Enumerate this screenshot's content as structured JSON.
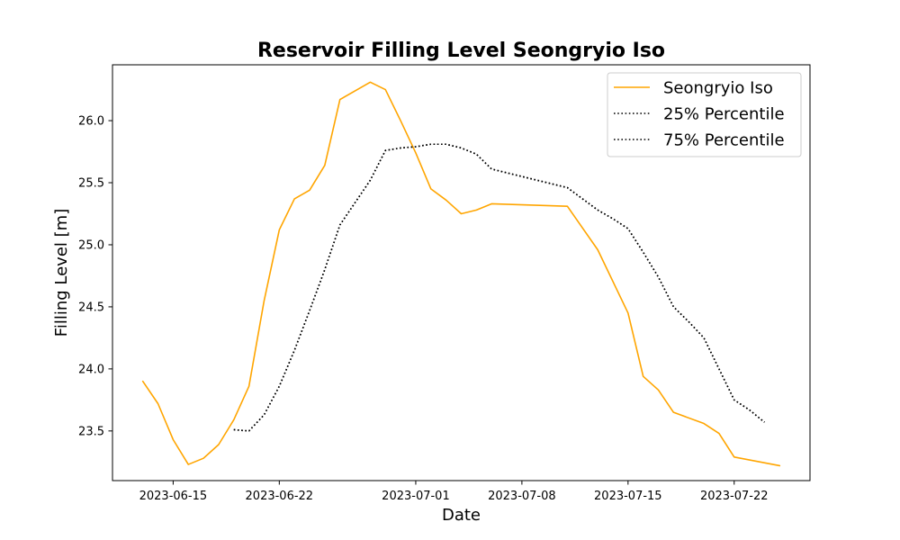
{
  "chart_data": {
    "type": "line",
    "title": "Reservoir Filling Level Seongryio Iso",
    "xlabel": "Date",
    "ylabel": "Filling Level [m]",
    "xlim": [
      "2023-06-11",
      "2023-07-27"
    ],
    "ylim": [
      23.1,
      26.45
    ],
    "x_ticks": [
      "2023-06-15",
      "2023-06-22",
      "2023-07-01",
      "2023-07-08",
      "2023-07-15",
      "2023-07-22"
    ],
    "y_ticks": [
      23.5,
      24.0,
      24.5,
      25.0,
      25.5,
      26.0
    ],
    "y_tick_labels": [
      "23.5",
      "24.0",
      "24.5",
      "25.0",
      "25.5",
      "26.0"
    ],
    "grid": false,
    "legend_position": "top-right",
    "series": [
      {
        "name": "Seongryio Iso",
        "color": "#FFA500",
        "style": "solid",
        "points": [
          [
            "2023-06-13",
            23.9
          ],
          [
            "2023-06-14",
            23.72
          ],
          [
            "2023-06-15",
            23.43
          ],
          [
            "2023-06-16",
            23.23
          ],
          [
            "2023-06-17",
            23.28
          ],
          [
            "2023-06-18",
            23.39
          ],
          [
            "2023-06-19",
            23.59
          ],
          [
            "2023-06-20",
            23.86
          ],
          [
            "2023-06-21",
            24.55
          ],
          [
            "2023-06-22",
            25.12
          ],
          [
            "2023-06-23",
            25.37
          ],
          [
            "2023-06-24",
            25.44
          ],
          [
            "2023-06-25",
            25.64
          ],
          [
            "2023-06-26",
            26.17
          ],
          [
            "2023-06-27",
            26.24
          ],
          [
            "2023-06-28",
            26.31
          ],
          [
            "2023-06-29",
            26.25
          ],
          [
            "2023-06-30",
            26.0
          ],
          [
            "2023-07-01",
            25.74
          ],
          [
            "2023-07-02",
            25.45
          ],
          [
            "2023-07-03",
            25.36
          ],
          [
            "2023-07-04",
            25.25
          ],
          [
            "2023-07-05",
            25.28
          ],
          [
            "2023-07-06",
            25.33
          ],
          [
            "2023-07-11",
            25.31
          ],
          [
            "2023-07-13",
            24.96
          ],
          [
            "2023-07-15",
            24.45
          ],
          [
            "2023-07-16",
            23.94
          ],
          [
            "2023-07-17",
            23.83
          ],
          [
            "2023-07-18",
            23.65
          ],
          [
            "2023-07-20",
            23.56
          ],
          [
            "2023-07-21",
            23.48
          ],
          [
            "2023-07-22",
            23.29
          ],
          [
            "2023-07-25",
            23.22
          ]
        ]
      },
      {
        "name": "25% Percentile",
        "color": "#000000",
        "style": "dotted",
        "points": [
          [
            "2023-06-19",
            23.51
          ],
          [
            "2023-06-20",
            23.5
          ],
          [
            "2023-06-21",
            23.63
          ],
          [
            "2023-06-22",
            23.86
          ],
          [
            "2023-06-23",
            24.15
          ],
          [
            "2023-06-24",
            24.47
          ],
          [
            "2023-06-25",
            24.8
          ],
          [
            "2023-06-26",
            25.16
          ],
          [
            "2023-06-27",
            25.34
          ],
          [
            "2023-06-28",
            25.52
          ],
          [
            "2023-06-29",
            25.76
          ],
          [
            "2023-06-30",
            25.78
          ],
          [
            "2023-07-01",
            25.79
          ],
          [
            "2023-07-02",
            25.81
          ],
          [
            "2023-07-03",
            25.81
          ],
          [
            "2023-07-04",
            25.78
          ],
          [
            "2023-07-05",
            25.73
          ],
          [
            "2023-07-06",
            25.61
          ],
          [
            "2023-07-07",
            25.58
          ],
          [
            "2023-07-08",
            25.55
          ],
          [
            "2023-07-09",
            25.52
          ],
          [
            "2023-07-10",
            25.49
          ],
          [
            "2023-07-11",
            25.46
          ],
          [
            "2023-07-12",
            25.37
          ],
          [
            "2023-07-13",
            25.28
          ],
          [
            "2023-07-14",
            25.21
          ],
          [
            "2023-07-15",
            25.13
          ],
          [
            "2023-07-16",
            24.94
          ],
          [
            "2023-07-17",
            24.74
          ],
          [
            "2023-07-18",
            24.5
          ],
          [
            "2023-07-19",
            24.38
          ],
          [
            "2023-07-20",
            24.25
          ],
          [
            "2023-07-21",
            24.0
          ],
          [
            "2023-07-22",
            23.75
          ],
          [
            "2023-07-23",
            23.67
          ],
          [
            "2023-07-24",
            23.57
          ]
        ]
      },
      {
        "name": "75% Percentile",
        "color": "#000000",
        "style": "dotted",
        "points": [
          [
            "2023-06-19",
            23.51
          ],
          [
            "2023-06-20",
            23.5
          ],
          [
            "2023-06-21",
            23.63
          ],
          [
            "2023-06-22",
            23.86
          ],
          [
            "2023-06-23",
            24.15
          ],
          [
            "2023-06-24",
            24.47
          ],
          [
            "2023-06-25",
            24.8
          ],
          [
            "2023-06-26",
            25.16
          ],
          [
            "2023-06-27",
            25.34
          ],
          [
            "2023-06-28",
            25.52
          ],
          [
            "2023-06-29",
            25.76
          ],
          [
            "2023-06-30",
            25.78
          ],
          [
            "2023-07-01",
            25.79
          ],
          [
            "2023-07-02",
            25.81
          ],
          [
            "2023-07-03",
            25.81
          ],
          [
            "2023-07-04",
            25.78
          ],
          [
            "2023-07-05",
            25.73
          ],
          [
            "2023-07-06",
            25.61
          ],
          [
            "2023-07-07",
            25.58
          ],
          [
            "2023-07-08",
            25.55
          ],
          [
            "2023-07-09",
            25.52
          ],
          [
            "2023-07-10",
            25.49
          ],
          [
            "2023-07-11",
            25.46
          ],
          [
            "2023-07-12",
            25.37
          ],
          [
            "2023-07-13",
            25.28
          ],
          [
            "2023-07-14",
            25.21
          ],
          [
            "2023-07-15",
            25.13
          ],
          [
            "2023-07-16",
            24.94
          ],
          [
            "2023-07-17",
            24.74
          ],
          [
            "2023-07-18",
            24.5
          ],
          [
            "2023-07-19",
            24.38
          ],
          [
            "2023-07-20",
            24.25
          ],
          [
            "2023-07-21",
            24.0
          ],
          [
            "2023-07-22",
            23.75
          ],
          [
            "2023-07-23",
            23.67
          ],
          [
            "2023-07-24",
            23.57
          ]
        ]
      }
    ]
  }
}
